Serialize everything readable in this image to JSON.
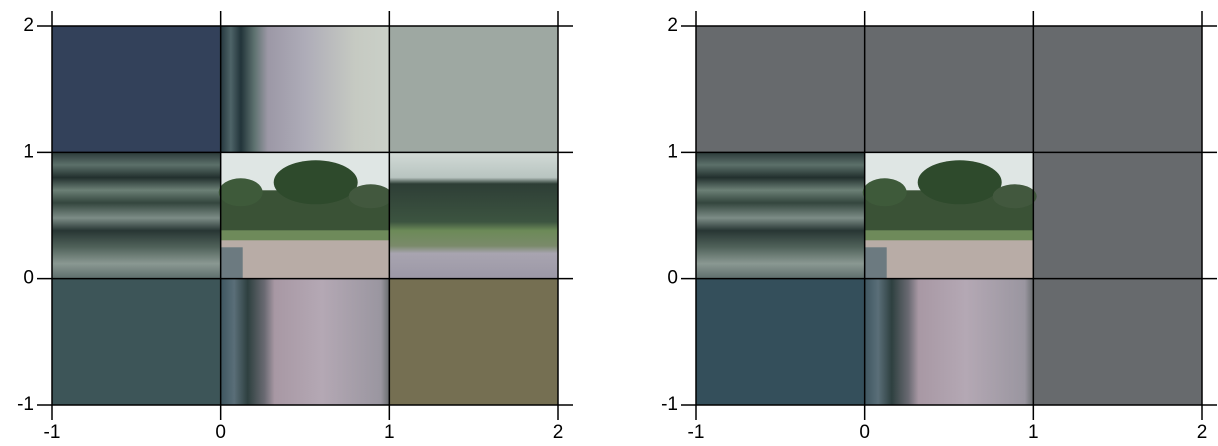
{
  "chart_data": [
    {
      "type": "image",
      "xlim": [
        -1,
        2
      ],
      "ylim": [
        -1,
        2
      ],
      "xticks": [
        -1,
        0,
        1,
        2
      ],
      "yticks": [
        -1,
        0,
        1,
        2
      ],
      "grid": true
    },
    {
      "type": "image",
      "xlim": [
        -1,
        2
      ],
      "ylim": [
        -1,
        2
      ],
      "xticks": [
        -1,
        0,
        1,
        2
      ],
      "yticks": [
        -1,
        0,
        1,
        2
      ],
      "grid": true
    }
  ]
}
